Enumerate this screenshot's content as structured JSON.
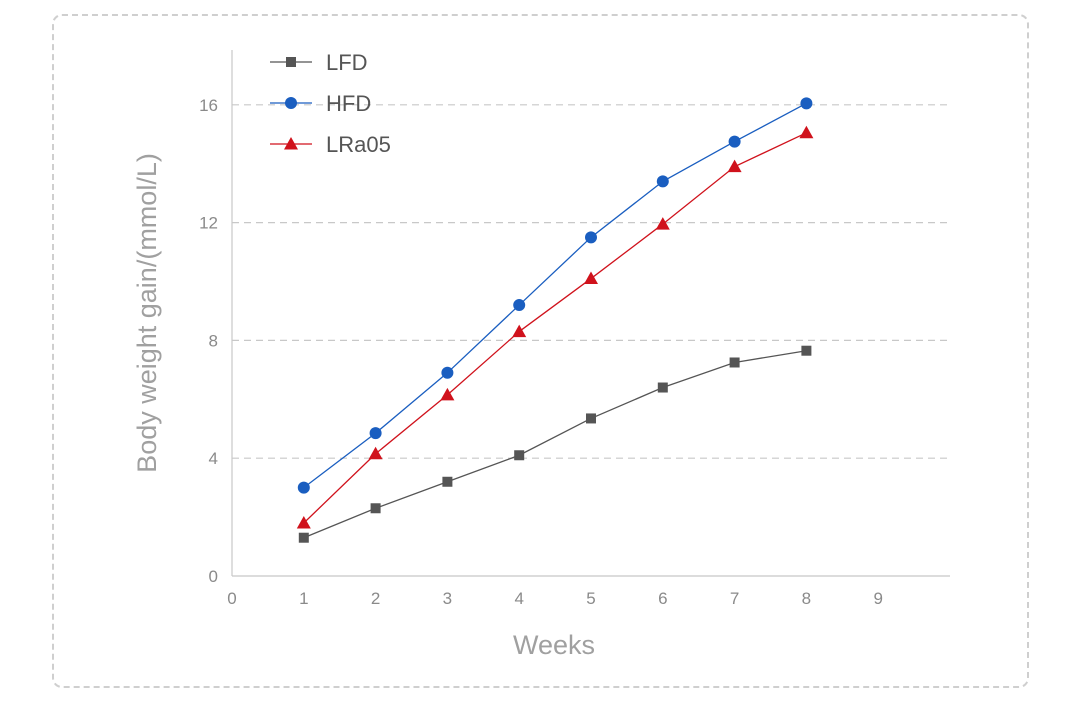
{
  "chart_data": {
    "type": "line",
    "title": "",
    "xlabel": "Weeks",
    "ylabel": "Body weight gain/(mmol/L)",
    "xlim": [
      0,
      10
    ],
    "ylim": [
      0,
      18
    ],
    "xticks": [
      0,
      1,
      2,
      3,
      4,
      5,
      6,
      7,
      8,
      9
    ],
    "yticks": [
      0,
      4,
      8,
      12,
      16
    ],
    "grid": "horizontal dashed at 4, 8, 12, 16",
    "legend_position": "top-left",
    "x": [
      1,
      2,
      3,
      4,
      5,
      6,
      7,
      8
    ],
    "series": [
      {
        "name": "LFD",
        "marker": "square",
        "color": "#555555",
        "values": [
          1.3,
          2.3,
          3.2,
          4.1,
          5.35,
          6.4,
          7.25,
          7.65
        ]
      },
      {
        "name": "HFD",
        "marker": "circle",
        "color": "#1a5ec0",
        "values": [
          3.0,
          4.85,
          6.9,
          9.2,
          11.5,
          13.4,
          14.75,
          16.05
        ]
      },
      {
        "name": "LRa05",
        "marker": "triangle",
        "color": "#d0121c",
        "values": [
          1.8,
          4.15,
          6.15,
          8.3,
          10.1,
          11.95,
          13.9,
          15.05
        ]
      }
    ]
  }
}
